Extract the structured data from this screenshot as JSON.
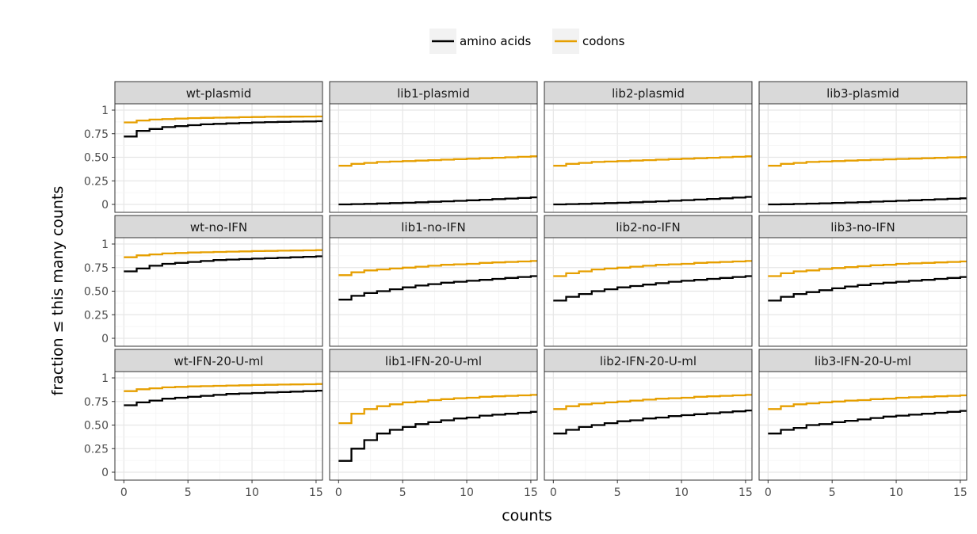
{
  "chart_data": {
    "type": "line",
    "layout": "facet-grid 3x4",
    "xlabel": "counts",
    "ylabel": "fraction ≤ this many counts",
    "xlim": [
      0,
      15.5
    ],
    "ylim": [
      0,
      1
    ],
    "x_ticks": [
      0,
      5,
      10,
      15
    ],
    "y_ticks": [
      0,
      0.25,
      0.5,
      0.75,
      1
    ],
    "y_tick_labels": [
      "0",
      "0.25",
      "0.50",
      "0.75",
      "1"
    ],
    "grid": true,
    "legend": {
      "placement": "top",
      "entries": [
        {
          "name": "amino acids",
          "color": "#000000"
        },
        {
          "name": "codons",
          "color": "#e69f00"
        }
      ]
    },
    "x": [
      0,
      1,
      2,
      3,
      4,
      5,
      6,
      7,
      8,
      9,
      10,
      11,
      12,
      13,
      14,
      15
    ],
    "panels": [
      {
        "title": "wt-plasmid",
        "series": [
          {
            "name": "amino acids",
            "values": [
              0.72,
              0.78,
              0.8,
              0.82,
              0.83,
              0.84,
              0.85,
              0.855,
              0.86,
              0.865,
              0.87,
              0.873,
              0.876,
              0.878,
              0.88,
              0.882
            ]
          },
          {
            "name": "codons",
            "values": [
              0.87,
              0.89,
              0.9,
              0.905,
              0.91,
              0.915,
              0.918,
              0.92,
              0.922,
              0.925,
              0.927,
              0.929,
              0.93,
              0.931,
              0.932,
              0.933
            ]
          }
        ]
      },
      {
        "title": "lib1-plasmid",
        "series": [
          {
            "name": "amino acids",
            "values": [
              0.0,
              0.003,
              0.006,
              0.01,
              0.014,
              0.018,
              0.023,
              0.028,
              0.033,
              0.038,
              0.044,
              0.05,
              0.056,
              0.062,
              0.068,
              0.075
            ]
          },
          {
            "name": "codons",
            "values": [
              0.41,
              0.43,
              0.44,
              0.45,
              0.455,
              0.46,
              0.465,
              0.47,
              0.475,
              0.48,
              0.485,
              0.49,
              0.495,
              0.5,
              0.505,
              0.51
            ]
          }
        ]
      },
      {
        "title": "lib2-plasmid",
        "series": [
          {
            "name": "amino acids",
            "values": [
              0.0,
              0.003,
              0.006,
              0.01,
              0.014,
              0.018,
              0.023,
              0.028,
              0.033,
              0.039,
              0.045,
              0.051,
              0.058,
              0.065,
              0.072,
              0.08
            ]
          },
          {
            "name": "codons",
            "values": [
              0.41,
              0.43,
              0.44,
              0.45,
              0.455,
              0.46,
              0.465,
              0.47,
              0.475,
              0.48,
              0.485,
              0.49,
              0.495,
              0.5,
              0.505,
              0.51
            ]
          }
        ]
      },
      {
        "title": "lib3-plasmid",
        "series": [
          {
            "name": "amino acids",
            "values": [
              0.0,
              0.002,
              0.005,
              0.008,
              0.012,
              0.016,
              0.02,
              0.024,
              0.029,
              0.034,
              0.039,
              0.044,
              0.05,
              0.055,
              0.06,
              0.065
            ]
          },
          {
            "name": "codons",
            "values": [
              0.41,
              0.43,
              0.44,
              0.45,
              0.455,
              0.46,
              0.465,
              0.47,
              0.474,
              0.478,
              0.482,
              0.486,
              0.49,
              0.494,
              0.498,
              0.502
            ]
          }
        ]
      },
      {
        "title": "wt-no-IFN",
        "series": [
          {
            "name": "amino acids",
            "values": [
              0.71,
              0.74,
              0.77,
              0.79,
              0.8,
              0.81,
              0.82,
              0.83,
              0.835,
              0.84,
              0.845,
              0.85,
              0.855,
              0.86,
              0.865,
              0.87
            ]
          },
          {
            "name": "codons",
            "values": [
              0.86,
              0.88,
              0.89,
              0.9,
              0.905,
              0.91,
              0.913,
              0.916,
              0.919,
              0.922,
              0.925,
              0.927,
              0.929,
              0.931,
              0.933,
              0.935
            ]
          }
        ]
      },
      {
        "title": "lib1-no-IFN",
        "series": [
          {
            "name": "amino acids",
            "values": [
              0.41,
              0.45,
              0.48,
              0.5,
              0.52,
              0.54,
              0.56,
              0.575,
              0.59,
              0.6,
              0.61,
              0.62,
              0.63,
              0.64,
              0.65,
              0.66
            ]
          },
          {
            "name": "codons",
            "values": [
              0.67,
              0.7,
              0.72,
              0.73,
              0.74,
              0.75,
              0.76,
              0.77,
              0.78,
              0.785,
              0.79,
              0.8,
              0.805,
              0.81,
              0.815,
              0.82
            ]
          }
        ]
      },
      {
        "title": "lib2-no-IFN",
        "series": [
          {
            "name": "amino acids",
            "values": [
              0.4,
              0.44,
              0.47,
              0.5,
              0.52,
              0.54,
              0.555,
              0.57,
              0.585,
              0.6,
              0.61,
              0.62,
              0.63,
              0.64,
              0.65,
              0.66
            ]
          },
          {
            "name": "codons",
            "values": [
              0.66,
              0.69,
              0.71,
              0.73,
              0.74,
              0.75,
              0.76,
              0.77,
              0.78,
              0.785,
              0.79,
              0.8,
              0.805,
              0.81,
              0.815,
              0.82
            ]
          }
        ]
      },
      {
        "title": "lib3-no-IFN",
        "series": [
          {
            "name": "amino acids",
            "values": [
              0.4,
              0.44,
              0.47,
              0.49,
              0.51,
              0.53,
              0.55,
              0.565,
              0.58,
              0.59,
              0.6,
              0.61,
              0.62,
              0.63,
              0.64,
              0.65
            ]
          },
          {
            "name": "codons",
            "values": [
              0.66,
              0.69,
              0.71,
              0.72,
              0.735,
              0.745,
              0.755,
              0.765,
              0.775,
              0.78,
              0.79,
              0.795,
              0.8,
              0.805,
              0.81,
              0.815
            ]
          }
        ]
      },
      {
        "title": "wt-IFN-20-U-ml",
        "series": [
          {
            "name": "amino acids",
            "values": [
              0.71,
              0.74,
              0.76,
              0.78,
              0.79,
              0.8,
              0.81,
              0.82,
              0.83,
              0.835,
              0.84,
              0.845,
              0.85,
              0.855,
              0.86,
              0.865
            ]
          },
          {
            "name": "codons",
            "values": [
              0.86,
              0.88,
              0.89,
              0.9,
              0.905,
              0.91,
              0.913,
              0.916,
              0.919,
              0.922,
              0.925,
              0.927,
              0.929,
              0.931,
              0.933,
              0.935
            ]
          }
        ]
      },
      {
        "title": "lib1-IFN-20-U-ml",
        "series": [
          {
            "name": "amino acids",
            "values": [
              0.12,
              0.25,
              0.34,
              0.41,
              0.45,
              0.48,
              0.51,
              0.53,
              0.55,
              0.57,
              0.58,
              0.6,
              0.61,
              0.62,
              0.63,
              0.64
            ]
          },
          {
            "name": "codons",
            "values": [
              0.52,
              0.62,
              0.67,
              0.7,
              0.72,
              0.74,
              0.75,
              0.765,
              0.775,
              0.785,
              0.79,
              0.8,
              0.805,
              0.81,
              0.815,
              0.82
            ]
          }
        ]
      },
      {
        "title": "lib2-IFN-20-U-ml",
        "series": [
          {
            "name": "amino acids",
            "values": [
              0.41,
              0.45,
              0.48,
              0.5,
              0.52,
              0.54,
              0.55,
              0.57,
              0.58,
              0.595,
              0.605,
              0.615,
              0.625,
              0.635,
              0.645,
              0.655
            ]
          },
          {
            "name": "codons",
            "values": [
              0.67,
              0.7,
              0.72,
              0.73,
              0.74,
              0.75,
              0.76,
              0.77,
              0.78,
              0.785,
              0.79,
              0.8,
              0.805,
              0.81,
              0.815,
              0.82
            ]
          }
        ]
      },
      {
        "title": "lib3-IFN-20-U-ml",
        "series": [
          {
            "name": "amino acids",
            "values": [
              0.41,
              0.45,
              0.47,
              0.5,
              0.51,
              0.53,
              0.545,
              0.56,
              0.575,
              0.59,
              0.6,
              0.61,
              0.62,
              0.63,
              0.64,
              0.65
            ]
          },
          {
            "name": "codons",
            "values": [
              0.67,
              0.7,
              0.72,
              0.73,
              0.74,
              0.75,
              0.76,
              0.765,
              0.775,
              0.78,
              0.79,
              0.795,
              0.8,
              0.805,
              0.81,
              0.815
            ]
          }
        ]
      }
    ]
  }
}
